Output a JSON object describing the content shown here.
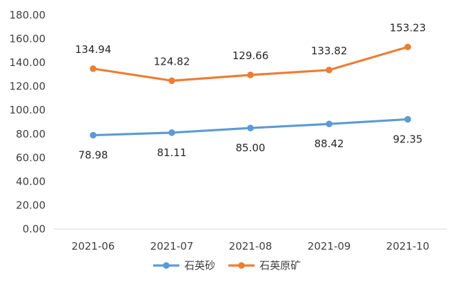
{
  "chart_data": {
    "type": "line",
    "categories": [
      "2021-06",
      "2021-07",
      "2021-08",
      "2021-09",
      "2021-10"
    ],
    "ylim": [
      0,
      180
    ],
    "ytick_step": 20,
    "ytick_format": "2dp",
    "grid": false,
    "legend_position": "bottom-center",
    "series": [
      {
        "name": "石英砂",
        "color": "#5B9BD5",
        "values": [
          78.98,
          81.11,
          85.0,
          88.42,
          92.35
        ],
        "labels": [
          "78.98",
          "81.11",
          "85.00",
          "88.42",
          "92.35"
        ],
        "label_position": "below"
      },
      {
        "name": "石英原矿",
        "color": "#ED7D31",
        "values": [
          134.94,
          124.82,
          129.66,
          133.82,
          153.23
        ],
        "labels": [
          "134.94",
          "124.82",
          "129.66",
          "133.82",
          "153.23"
        ],
        "label_position": "above"
      }
    ]
  }
}
